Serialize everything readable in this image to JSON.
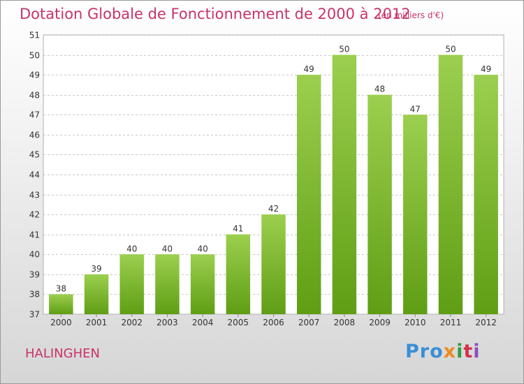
{
  "chart_data": {
    "type": "bar",
    "title": "Dotation Globale de Fonctionnement de 2000 à 2012",
    "unit_label": "(en milliers d'€)",
    "categories": [
      "2000",
      "2001",
      "2002",
      "2003",
      "2004",
      "2005",
      "2006",
      "2007",
      "2008",
      "2009",
      "2010",
      "2011",
      "2012"
    ],
    "values": [
      38,
      39,
      40,
      40,
      40,
      41,
      42,
      49,
      50,
      48,
      47,
      50,
      49
    ],
    "ylim": [
      37,
      51
    ],
    "yticks": [
      37,
      38,
      39,
      40,
      41,
      42,
      43,
      44,
      45,
      46,
      47,
      48,
      49,
      50,
      51
    ],
    "grid": true,
    "bar_color_top": "#9ccf4f",
    "bar_color_bottom": "#5f9e14"
  },
  "commune": "HALINGHEN",
  "logo": {
    "p1": "Pro",
    "p2": "x",
    "p3": "i",
    "p4": "t",
    "p5": "i"
  }
}
